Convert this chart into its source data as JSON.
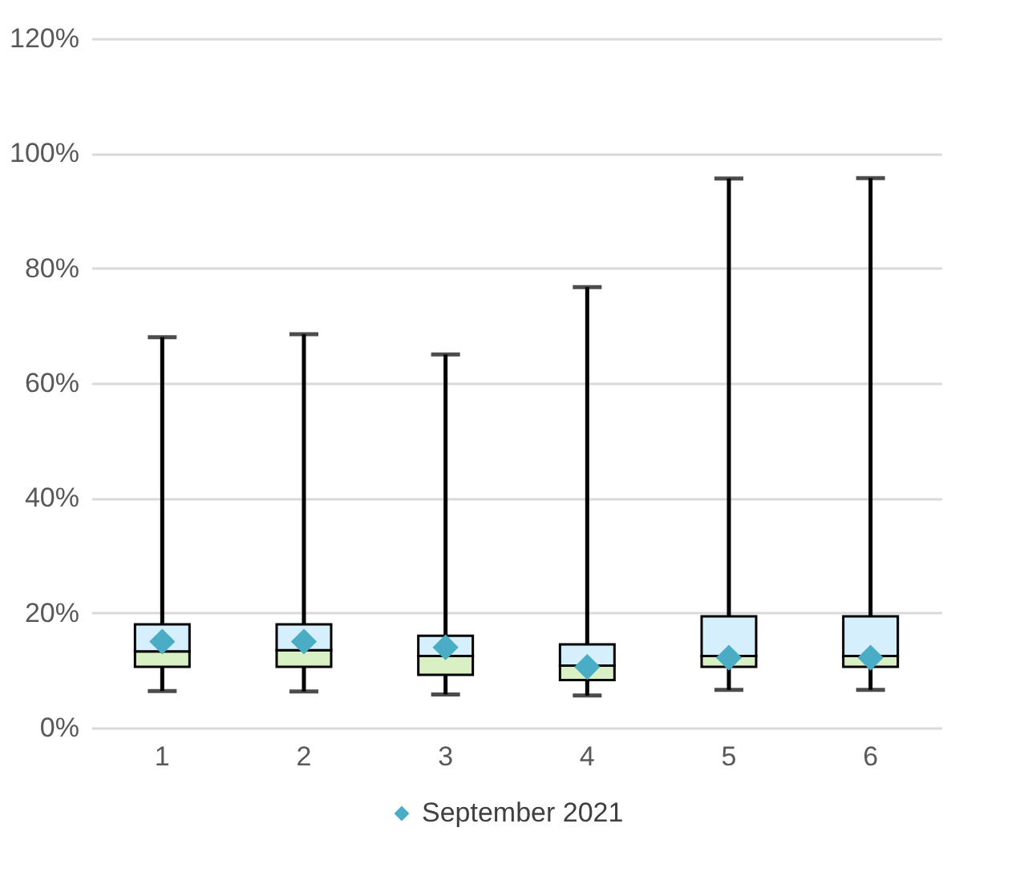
{
  "chart_data": {
    "type": "box",
    "categories": [
      "1",
      "2",
      "3",
      "4",
      "5",
      "6"
    ],
    "colors": [
      "#d5effc",
      "#d8f0c4"
    ],
    "series": [
      {
        "boxes": [
          {
            "low": 6.4,
            "q1": 10.6,
            "median": 13.3,
            "q3": 18,
            "high": 68
          },
          {
            "low": 6.3,
            "q1": 10.6,
            "median": 13.5,
            "q3": 18,
            "high": 68.5
          },
          {
            "low": 5.8,
            "q1": 9.2,
            "median": 12.5,
            "q3": 16,
            "high": 65
          },
          {
            "low": 5.6,
            "q1": 8.3,
            "median": 10.8,
            "q3": 14.5,
            "high": 76.7
          },
          {
            "low": 6.6,
            "q1": 10.6,
            "median": 12.5,
            "q3": 19.4,
            "high": 95.6
          },
          {
            "low": 6.6,
            "q1": 10.6,
            "median": 12.5,
            "q3": 19.4,
            "high": 95.7
          }
        ]
      },
      {
        "name": "September 2021",
        "type": "scatter",
        "color": "#4bacc6",
        "marker": "diamond",
        "x": [
          "1",
          "2",
          "3",
          "4",
          "5",
          "6"
        ],
        "values": [
          15,
          15,
          14,
          10.6,
          12.2,
          12.2
        ]
      }
    ],
    "ylim": [
      0,
      120
    ],
    "yticks": [
      {
        "value": 0,
        "label": "0%"
      },
      {
        "value": 20,
        "label": "20%"
      },
      {
        "value": 40,
        "label": "40%"
      },
      {
        "value": 60,
        "label": "60%"
      },
      {
        "value": 80,
        "label": "80%"
      },
      {
        "value": 100,
        "label": "100%"
      },
      {
        "value": 120,
        "label": "120%"
      }
    ],
    "grid": "y",
    "legend": "bottom"
  }
}
